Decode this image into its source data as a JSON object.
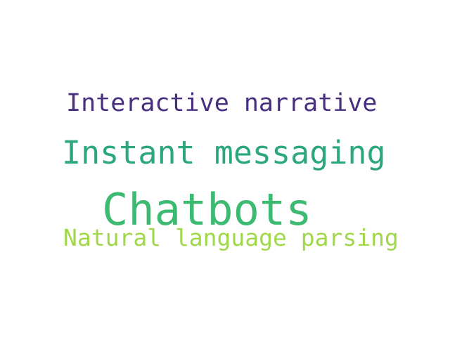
{
  "colors": {
    "background": "#ffffff",
    "interactive_narrative": "#472f7d",
    "instant_messaging": "#2ba67e",
    "chatbots": "#3dba72",
    "natural_language_parsing": "#a0d84a"
  },
  "words": {
    "interactive_narrative": "Interactive narrative",
    "instant_messaging": "Instant messaging",
    "chatbots": "Chatbots",
    "natural_language_parsing": "Natural language parsing"
  }
}
